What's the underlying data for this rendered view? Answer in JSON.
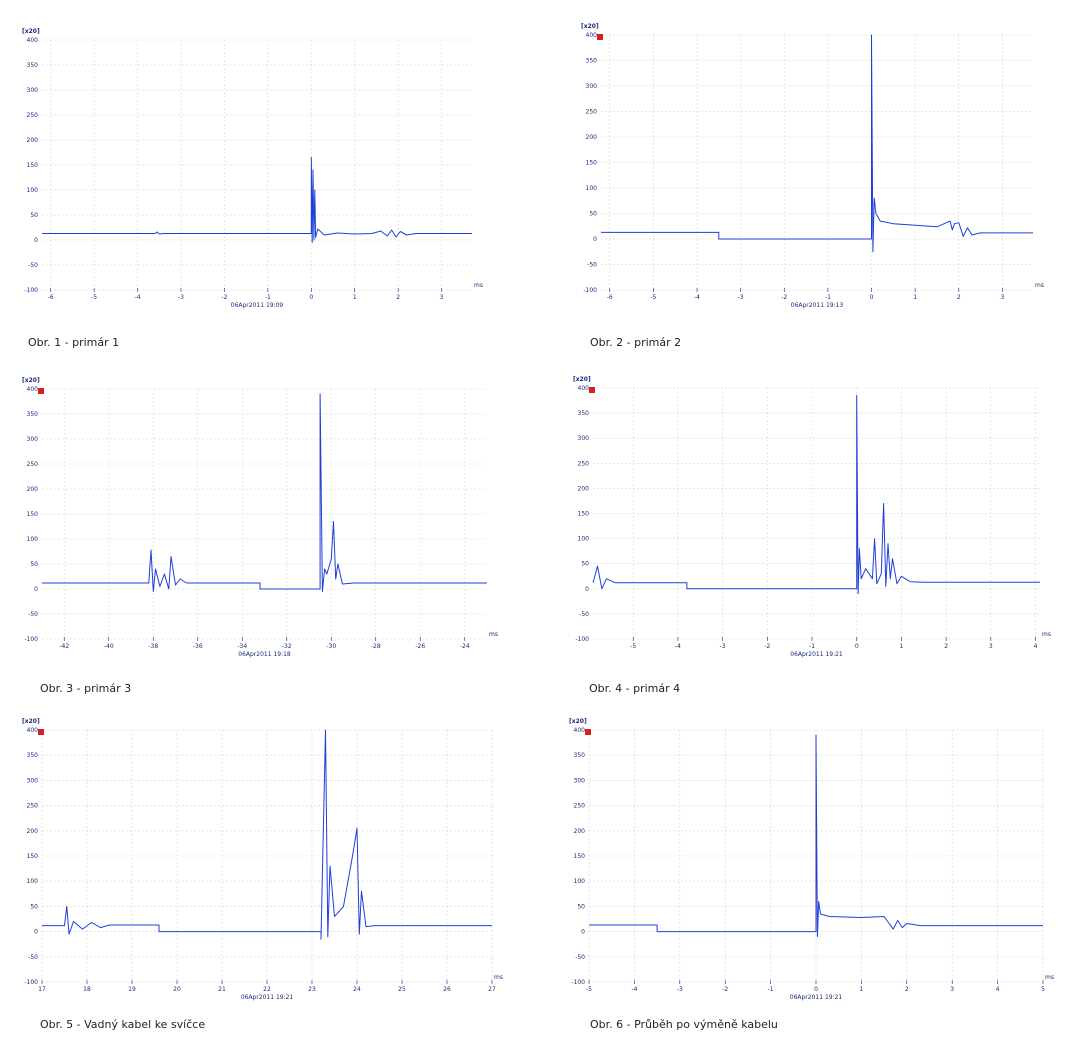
{
  "colors": {
    "trace": "#1f3fd8",
    "text": "#1a2a7a",
    "grid": "#d6d6d6",
    "marker": "#d42020"
  },
  "chart_data": [
    {
      "type": "line",
      "caption": "Obr. 1 - primár 1",
      "timestamp": "06Apr2011  19:09",
      "y_unit": "[x20]",
      "x_unit": "ms",
      "xlim": [
        -6.2,
        3.7
      ],
      "ylim": [
        -100,
        400
      ],
      "xticks": [
        -6,
        -5,
        -4,
        -3,
        -2,
        -1,
        0,
        1,
        2,
        3
      ],
      "yticks": [
        400,
        350,
        300,
        250,
        200,
        150,
        100,
        50,
        0,
        -50,
        -100
      ],
      "marker": false,
      "series": [
        {
          "x": [
            -6.2,
            -3.6,
            -3.55,
            -3.5,
            -3.4,
            0,
            0.0,
            0.02,
            0.04,
            0.06,
            0.08,
            0.1,
            0.15,
            0.3,
            0.6,
            1.0,
            1.4,
            1.6,
            1.75,
            1.85,
            1.95,
            2.05,
            2.2,
            2.4,
            3.7
          ],
          "y": [
            13,
            13,
            16,
            12,
            13,
            13,
            165,
            -5,
            140,
            0,
            100,
            5,
            22,
            10,
            14,
            12,
            13,
            18,
            8,
            20,
            6,
            17,
            10,
            13,
            13
          ]
        }
      ]
    },
    {
      "type": "line",
      "caption": "Obr. 2 - primár 2",
      "timestamp": "06Apr2011  19:13",
      "y_unit": "[x20]",
      "x_unit": "ms",
      "xlim": [
        -6.2,
        3.7
      ],
      "ylim": [
        -100,
        400
      ],
      "xticks": [
        -6,
        -5,
        -4,
        -3,
        -2,
        -1,
        0,
        1,
        2,
        3
      ],
      "yticks": [
        400,
        350,
        300,
        250,
        200,
        150,
        100,
        50,
        0,
        -50,
        -100
      ],
      "marker": true,
      "series": [
        {
          "x": [
            -6.2,
            -3.5,
            -3.5,
            0,
            0.0,
            0.03,
            0.06,
            0.1,
            0.2,
            0.5,
            1.0,
            1.5,
            1.8,
            1.85,
            1.9,
            2.0,
            2.1,
            2.2,
            2.3,
            2.5,
            3.7
          ],
          "y": [
            13,
            13,
            0,
            0,
            400,
            -25,
            80,
            50,
            35,
            30,
            27,
            24,
            35,
            18,
            30,
            32,
            5,
            22,
            8,
            12,
            12
          ]
        }
      ]
    },
    {
      "type": "line",
      "caption": "Obr. 3 - primár 3",
      "timestamp": "06Apr2011  19:18",
      "y_unit": "[x20]",
      "x_unit": "ms",
      "xlim": [
        -43,
        -23
      ],
      "ylim": [
        -100,
        400
      ],
      "xticks": [
        -42,
        -40,
        -38,
        -36,
        -34,
        -32,
        -30,
        -28,
        -26,
        -24
      ],
      "yticks": [
        400,
        350,
        300,
        250,
        200,
        150,
        100,
        50,
        0,
        -50,
        -100
      ],
      "marker": true,
      "series": [
        {
          "x": [
            -43,
            -38.2,
            -38.1,
            -38.0,
            -37.9,
            -37.7,
            -37.5,
            -37.3,
            -37.2,
            -37.0,
            -36.8,
            -36.5,
            -33.2,
            -33.2,
            -30.5,
            -30.5,
            -30.4,
            -30.3,
            -30.2,
            -30.0,
            -29.9,
            -29.8,
            -29.7,
            -29.5,
            -29.0,
            -23
          ],
          "y": [
            12,
            12,
            78,
            -5,
            40,
            5,
            30,
            0,
            65,
            8,
            20,
            12,
            12,
            0,
            0,
            390,
            -5,
            40,
            30,
            60,
            135,
            20,
            50,
            10,
            12,
            12
          ]
        }
      ]
    },
    {
      "type": "line",
      "caption": "Obr. 4 - primár 4",
      "timestamp": "06Apr2011  19:21",
      "y_unit": "[x20]",
      "x_unit": "ms",
      "xlim": [
        -5.9,
        4.1
      ],
      "ylim": [
        -100,
        400
      ],
      "xticks": [
        -5,
        -4,
        -3,
        -2,
        -1,
        0,
        1,
        2,
        3,
        4
      ],
      "yticks": [
        400,
        350,
        300,
        250,
        200,
        150,
        100,
        50,
        0,
        -50,
        -100
      ],
      "marker": true,
      "series": [
        {
          "x": [
            -5.9,
            -5.8,
            -5.7,
            -5.6,
            -5.4,
            -4.5,
            -3.8,
            -3.8,
            0,
            0.0,
            0.03,
            0.06,
            0.1,
            0.2,
            0.35,
            0.4,
            0.45,
            0.55,
            0.6,
            0.65,
            0.7,
            0.75,
            0.8,
            0.9,
            1.0,
            1.2,
            1.5,
            4.1
          ],
          "y": [
            12,
            45,
            0,
            20,
            12,
            12,
            12,
            0,
            0,
            385,
            -10,
            80,
            20,
            40,
            20,
            100,
            10,
            30,
            170,
            5,
            90,
            20,
            60,
            10,
            25,
            14,
            13,
            13
          ]
        }
      ]
    },
    {
      "type": "line",
      "caption": "Obr. 5 - Vadný kabel ke svíčce",
      "timestamp": "06Apr2011  19:21",
      "y_unit": "[x20]",
      "x_unit": "ms",
      "xlim": [
        17,
        27
      ],
      "ylim": [
        -100,
        400
      ],
      "xticks": [
        17,
        18,
        19,
        20,
        21,
        22,
        23,
        24,
        25,
        26,
        27
      ],
      "yticks": [
        400,
        350,
        300,
        250,
        200,
        150,
        100,
        50,
        0,
        -50,
        -100
      ],
      "marker": true,
      "series": [
        {
          "x": [
            17,
            17.5,
            17.55,
            17.6,
            17.7,
            17.9,
            18.1,
            18.3,
            18.5,
            19.6,
            19.6,
            23.2,
            23.2,
            23.3,
            23.35,
            23.4,
            23.5,
            23.7,
            23.8,
            23.9,
            24.0,
            24.05,
            24.1,
            24.2,
            24.4,
            27
          ],
          "y": [
            12,
            12,
            50,
            -5,
            20,
            5,
            18,
            8,
            13,
            13,
            0,
            0,
            -15,
            400,
            -10,
            130,
            30,
            50,
            100,
            150,
            205,
            -5,
            80,
            10,
            12,
            12
          ]
        }
      ]
    },
    {
      "type": "line",
      "caption": "Obr. 6 - Průběh po výměně kabelu",
      "timestamp": "06Apr2011  19:21",
      "y_unit": "[x20]",
      "x_unit": "ms",
      "xlim": [
        -5,
        5
      ],
      "ylim": [
        -100,
        400
      ],
      "xticks": [
        -5,
        -4,
        -3,
        -2,
        -1,
        0,
        1,
        2,
        3,
        4,
        5
      ],
      "yticks": [
        400,
        350,
        300,
        250,
        200,
        150,
        100,
        50,
        0,
        -50,
        -100
      ],
      "marker": true,
      "series": [
        {
          "x": [
            -5,
            -3.5,
            -3.5,
            0,
            0.0,
            0.03,
            0.06,
            0.1,
            0.3,
            1.0,
            1.5,
            1.7,
            1.8,
            1.9,
            2.0,
            2.3,
            5
          ],
          "y": [
            13,
            13,
            0,
            0,
            390,
            -10,
            60,
            35,
            30,
            28,
            30,
            5,
            22,
            8,
            16,
            12,
            12
          ]
        }
      ]
    }
  ]
}
